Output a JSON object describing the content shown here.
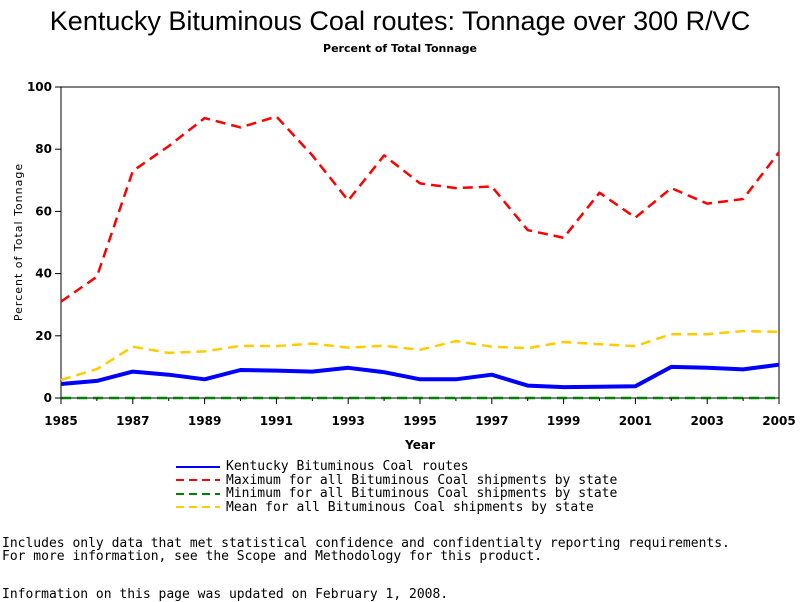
{
  "title": "Kentucky Bituminous Coal routes: Tonnage over 300 R/VC",
  "subtitle": "Percent of Total Tonnage",
  "footer": {
    "note1": "Includes only data that met statistical confidence and confidentialty reporting requirements.",
    "note2": "For more information, see the Scope and Methodology for this product.",
    "updated": "Information on this page was updated on February 1, 2008."
  },
  "chart_data": {
    "type": "line",
    "title": "Kentucky Bituminous Coal routes: Tonnage over 300 R/VC",
    "subtitle": "Percent of Total Tonnage",
    "xlabel": "Year",
    "ylabel": "Percent of Total Tonnage",
    "xlim": [
      1985,
      2005
    ],
    "ylim": [
      0,
      100
    ],
    "x_ticks": [
      "1985",
      "1987",
      "1989",
      "1991",
      "1993",
      "1995",
      "1997",
      "1999",
      "2001",
      "2003",
      "2005"
    ],
    "y_ticks": [
      "0",
      "20",
      "40",
      "60",
      "80",
      "100"
    ],
    "grid": false,
    "legend_position": "bottom",
    "x": [
      1985,
      1986,
      1987,
      1988,
      1989,
      1990,
      1991,
      1992,
      1993,
      1994,
      1995,
      1996,
      1997,
      1998,
      1999,
      2000,
      2001,
      2002,
      2003,
      2004,
      2005
    ],
    "series": [
      {
        "name": "Kentucky Bituminous Coal routes",
        "color": "#0000ff",
        "style": "solid",
        "values": [
          4.5,
          5.5,
          8.5,
          7.5,
          6,
          9,
          8.8,
          8.5,
          9.7,
          8.3,
          6,
          6,
          7.5,
          4,
          3.5,
          3.6,
          3.8,
          10,
          9.7,
          9.2,
          10.7
        ]
      },
      {
        "name": "Maximum for all Bituminous Coal shipments by state",
        "color": "#ff0000",
        "style": "dashed",
        "values": [
          31,
          39,
          73,
          81,
          90,
          87,
          90.5,
          78,
          63.5,
          78,
          69,
          67.5,
          68,
          54,
          51.5,
          66,
          58,
          67.5,
          62.5,
          64,
          79
        ]
      },
      {
        "name": "Minimum for all Bituminous Coal shipments by state",
        "color": "#008000",
        "style": "dashed",
        "values": [
          0,
          0,
          0,
          0,
          0,
          0,
          0,
          0,
          0,
          0,
          0,
          0,
          0,
          0,
          0,
          0,
          0,
          0,
          0,
          0,
          0
        ]
      },
      {
        "name": "Mean for all Bituminous Coal shipments by state",
        "color": "#ffcc00",
        "style": "dashed",
        "values": [
          5.8,
          9.3,
          16.5,
          14.5,
          15,
          16.8,
          16.7,
          17.5,
          16.2,
          16.8,
          15.5,
          18.3,
          16.5,
          16,
          18,
          17.3,
          16.7,
          20.5,
          20.5,
          21.5,
          21.3
        ]
      }
    ]
  }
}
